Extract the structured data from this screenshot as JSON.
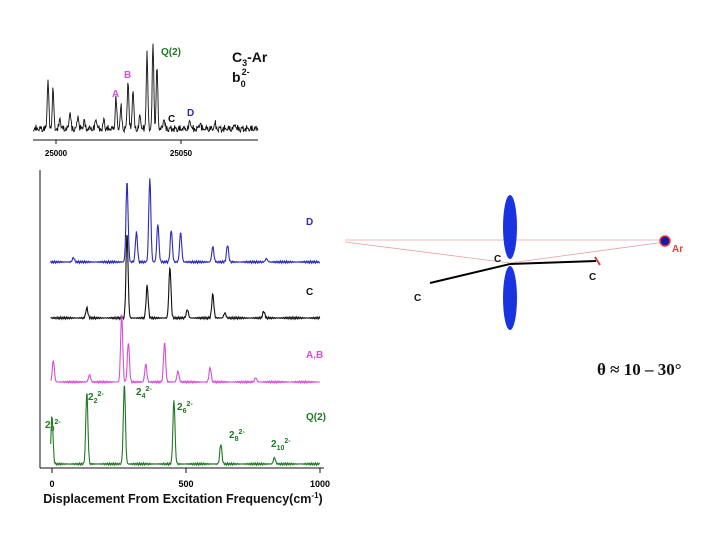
{
  "colors": {
    "blue": "#2b2bb8",
    "black": "#111111",
    "magenta": "#d64fd6",
    "green": "#1f7a1f",
    "ellipse": "#1a33e0",
    "ar_atom": "#1a1aa0",
    "ar_ring": "#e04040",
    "guide": "#e8a0a0"
  },
  "inset": {
    "title": "C3-Ar",
    "title_main": "C",
    "title_sub": "3",
    "title_tail": "-Ar",
    "level_main": "b",
    "level_sub": "0",
    "level_sup": "2-",
    "labels": {
      "Q2": "Q(2)",
      "A": "A",
      "B": "B",
      "C": "C",
      "D": "D"
    },
    "ticks": [
      "25000",
      "25050"
    ]
  },
  "chart_data": {
    "type": "line",
    "xlabel_main": "Displacement From Excitation Frequency(cm",
    "xlabel_sup": "-1",
    "xlabel_tail": ")",
    "xlim": [
      0,
      1000
    ],
    "xticks": [
      0,
      500,
      1000
    ],
    "series": [
      {
        "name": "D",
        "peaks": [
          [
            80,
            0.05
          ],
          [
            280,
            0.95
          ],
          [
            315,
            0.35
          ],
          [
            365,
            0.98
          ],
          [
            395,
            0.45
          ],
          [
            445,
            0.38
          ],
          [
            480,
            0.35
          ],
          [
            600,
            0.18
          ],
          [
            655,
            0.2
          ],
          [
            800,
            0.04
          ]
        ]
      },
      {
        "name": "C",
        "peaks": [
          [
            130,
            0.12
          ],
          [
            280,
            1.0
          ],
          [
            355,
            0.38
          ],
          [
            440,
            0.6
          ],
          [
            505,
            0.1
          ],
          [
            600,
            0.28
          ],
          [
            645,
            0.06
          ],
          [
            790,
            0.08
          ]
        ]
      },
      {
        "name": "A,B",
        "peaks": [
          [
            5,
            0.3
          ],
          [
            140,
            0.1
          ],
          [
            260,
            0.95
          ],
          [
            285,
            0.55
          ],
          [
            350,
            0.25
          ],
          [
            420,
            0.55
          ],
          [
            470,
            0.15
          ],
          [
            590,
            0.2
          ],
          [
            760,
            0.06
          ]
        ]
      },
      {
        "name": "Q(2)",
        "peaks": [
          [
            0,
            0.6
          ],
          [
            130,
            0.9
          ],
          [
            270,
            1.0
          ],
          [
            455,
            0.8
          ],
          [
            630,
            0.25
          ],
          [
            830,
            0.08
          ]
        ]
      }
    ],
    "peak_labels": [
      {
        "main": "2",
        "sub": "0",
        "sup": "2-"
      },
      {
        "main": "2",
        "sub": "2",
        "sup": "2-"
      },
      {
        "main": "2",
        "sub": "4",
        "sup": "2-"
      },
      {
        "main": "2",
        "sub": "6",
        "sup": "2-"
      },
      {
        "main": "2",
        "sub": "8",
        "sup": "2-"
      },
      {
        "main": "2",
        "sub": "10",
        "sup": "2-"
      }
    ]
  },
  "diagram": {
    "c_top": "C",
    "c_right": "C",
    "c_left": "C",
    "ar": "Ar",
    "angle": "θ ≈ 10 – 30°"
  }
}
